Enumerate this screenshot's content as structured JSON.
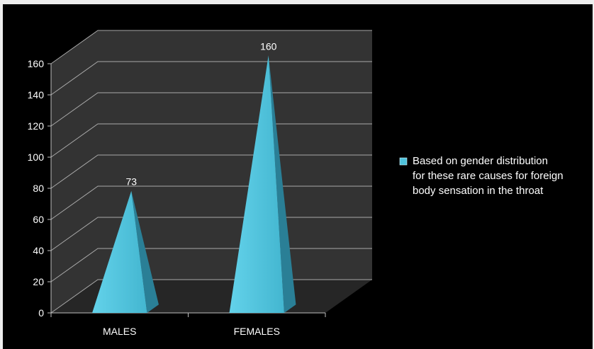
{
  "chart_data": {
    "type": "bar",
    "bar_shape": "pyramid",
    "style": "3d",
    "categories": [
      "MALES",
      "FEMALES"
    ],
    "series": [
      {
        "name": "Based on gender distribution for these rare causes for foreign body sensation in the throat",
        "values": [
          73,
          160
        ],
        "color": "#4fc3dc"
      }
    ],
    "data_labels": [
      "73",
      "160"
    ],
    "ylim": [
      0,
      160
    ],
    "y_ticks": [
      0,
      20,
      40,
      60,
      80,
      100,
      120,
      140,
      160
    ],
    "y_tick_labels": [
      "0",
      "20",
      "40",
      "60",
      "80",
      "100",
      "120",
      "140",
      "160"
    ],
    "grid": true,
    "legend_position": "right",
    "legend_lines": [
      "Based on gender distribution",
      "for these rare causes for foreign",
      "body sensation in the throat"
    ],
    "colors": {
      "background": "#000000",
      "plot_wall": "#333333",
      "gridline": "#a8a8a8",
      "text": "#ffffff",
      "bar_front": "#4fc3dc",
      "bar_side": "#2a7f96"
    }
  }
}
